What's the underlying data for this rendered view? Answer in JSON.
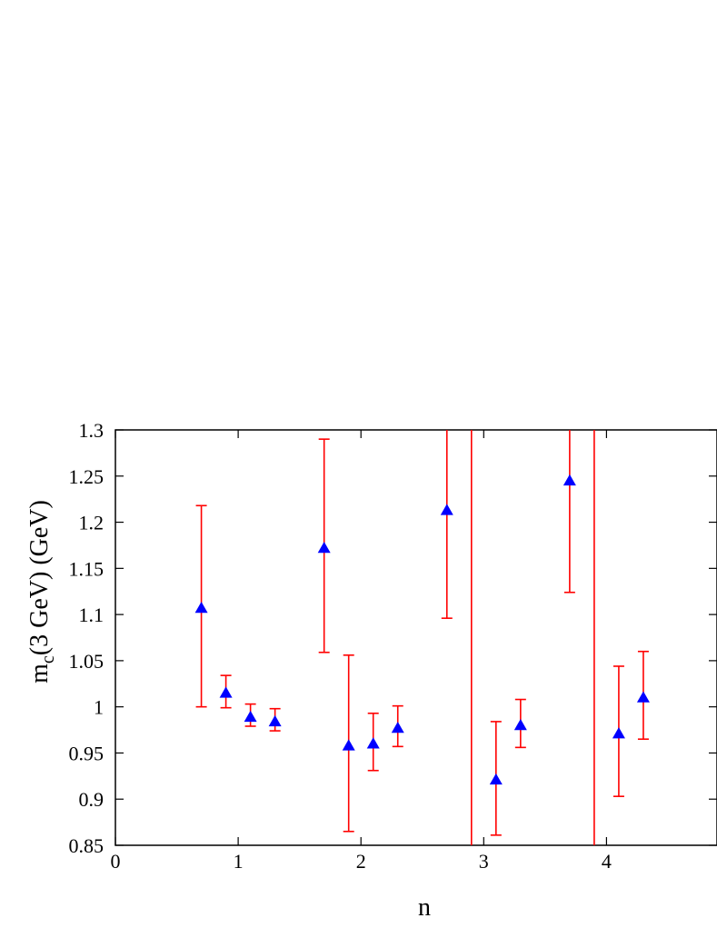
{
  "chart_data": {
    "type": "scatter",
    "title": "",
    "xlabel": "n",
    "ylabel": {
      "prefix": "m",
      "subscript": "c",
      "suffix": "(3 GeV) (GeV)"
    },
    "xlim": [
      0,
      4.9
    ],
    "ylim": [
      0.85,
      1.3
    ],
    "x_ticks": [
      {
        "value": 0,
        "label": "0"
      },
      {
        "value": 1,
        "label": "1"
      },
      {
        "value": 2,
        "label": "2"
      },
      {
        "value": 3,
        "label": "3"
      },
      {
        "value": 4,
        "label": "4"
      }
    ],
    "y_ticks": [
      {
        "value": 0.85,
        "label": "0.85"
      },
      {
        "value": 0.9,
        "label": "0.9"
      },
      {
        "value": 0.95,
        "label": "0.95"
      },
      {
        "value": 1.0,
        "label": "1"
      },
      {
        "value": 1.05,
        "label": "1.05"
      },
      {
        "value": 1.1,
        "label": "1.1"
      },
      {
        "value": 1.15,
        "label": "1.15"
      },
      {
        "value": 1.2,
        "label": "1.2"
      },
      {
        "value": 1.25,
        "label": "1.25"
      },
      {
        "value": 1.3,
        "label": "1.3"
      }
    ],
    "grid": false,
    "marker_color": "#0000ff",
    "errorbar_color": "#ff0000",
    "points": [
      {
        "x": 0.7,
        "y": 1.107,
        "lo": 1.0,
        "hi": 1.218
      },
      {
        "x": 0.9,
        "y": 1.015,
        "lo": 0.999,
        "hi": 1.034
      },
      {
        "x": 1.1,
        "y": 0.989,
        "lo": 0.979,
        "hi": 1.003
      },
      {
        "x": 1.3,
        "y": 0.984,
        "lo": 0.974,
        "hi": 0.998
      },
      {
        "x": 1.7,
        "y": 1.172,
        "lo": 1.059,
        "hi": 1.29
      },
      {
        "x": 1.9,
        "y": 0.958,
        "lo": 0.865,
        "hi": 1.056
      },
      {
        "x": 2.1,
        "y": 0.96,
        "lo": 0.931,
        "hi": 0.993
      },
      {
        "x": 2.3,
        "y": 0.977,
        "lo": 0.957,
        "hi": 1.001
      },
      {
        "x": 2.7,
        "y": 1.213,
        "lo": 1.096,
        "hi": 1.3
      },
      {
        "x": 2.9,
        "y": null,
        "lo": 0.85,
        "hi": 1.3
      },
      {
        "x": 3.1,
        "y": 0.921,
        "lo": 0.861,
        "hi": 0.984
      },
      {
        "x": 3.3,
        "y": 0.98,
        "lo": 0.956,
        "hi": 1.008
      },
      {
        "x": 3.7,
        "y": 1.245,
        "lo": 1.124,
        "hi": 1.3
      },
      {
        "x": 3.9,
        "y": null,
        "lo": 0.85,
        "hi": 1.3
      },
      {
        "x": 4.1,
        "y": 0.971,
        "lo": 0.903,
        "hi": 1.044
      },
      {
        "x": 4.3,
        "y": 1.01,
        "lo": 0.965,
        "hi": 1.06
      }
    ]
  }
}
